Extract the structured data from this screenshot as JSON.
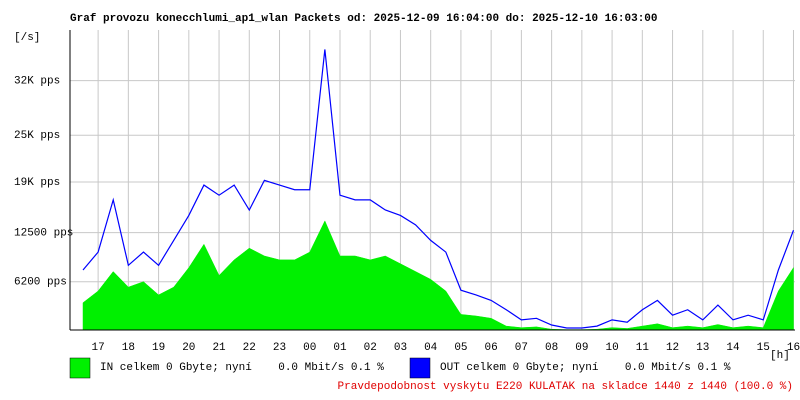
{
  "chart_data": {
    "type": "line",
    "title": "Graf provozu konecchlumi_ap1_wlan Packets od: 2025-12-09 16:04:00 do: 2025-12-10 16:03:00",
    "y_label": "[/s]",
    "x_label": "[h]",
    "footer": "Pravdepodobnost vyskytu E220 KULATAK na skladce 1440 z 1440 (100.0 %)",
    "grid": true,
    "xlim": [
      16.07,
      40.05
    ],
    "xticks": [
      {
        "value": 17,
        "label": "17"
      },
      {
        "value": 18,
        "label": "18"
      },
      {
        "value": 19,
        "label": "19"
      },
      {
        "value": 20,
        "label": "20"
      },
      {
        "value": 21,
        "label": "21"
      },
      {
        "value": 22,
        "label": "22"
      },
      {
        "value": 23,
        "label": "23"
      },
      {
        "value": 24,
        "label": "00"
      },
      {
        "value": 25,
        "label": "01"
      },
      {
        "value": 26,
        "label": "02"
      },
      {
        "value": 27,
        "label": "03"
      },
      {
        "value": 28,
        "label": "04"
      },
      {
        "value": 29,
        "label": "05"
      },
      {
        "value": 30,
        "label": "06"
      },
      {
        "value": 31,
        "label": "07"
      },
      {
        "value": 32,
        "label": "08"
      },
      {
        "value": 33,
        "label": "09"
      },
      {
        "value": 34,
        "label": "10"
      },
      {
        "value": 35,
        "label": "11"
      },
      {
        "value": 36,
        "label": "12"
      },
      {
        "value": 37,
        "label": "13"
      },
      {
        "value": 38,
        "label": "14"
      },
      {
        "value": 39,
        "label": "15"
      },
      {
        "value": 40,
        "label": "16"
      }
    ],
    "ylim": [
      0,
      38500
    ],
    "yticks": [
      {
        "value": 6200,
        "label": "6200 pps"
      },
      {
        "value": 12500,
        "label": "12500 pps"
      },
      {
        "value": 19000,
        "label": "19K pps"
      },
      {
        "value": 25000,
        "label": "25K pps"
      },
      {
        "value": 32000,
        "label": "32K pps"
      }
    ],
    "x": [
      16.5,
      17,
      17.5,
      18,
      18.5,
      19,
      19.5,
      20,
      20.5,
      21,
      21.5,
      22,
      22.5,
      23,
      23.5,
      24,
      24.5,
      25,
      25.5,
      26,
      26.5,
      27,
      27.5,
      28,
      28.5,
      29,
      29.5,
      30,
      30.5,
      31,
      31.5,
      32,
      32.5,
      33,
      33.5,
      34,
      34.5,
      35,
      35.5,
      36,
      36.5,
      37,
      37.5,
      38,
      38.5,
      39,
      39.5,
      40
    ],
    "series": [
      {
        "name": "IN celkem 0 Gbyte; nyní    0.0 Mbit/s 0.1 %",
        "color": "#00f000",
        "fill": true,
        "values": [
          3500,
          5000,
          7500,
          5500,
          6200,
          4500,
          5500,
          8000,
          11000,
          7000,
          9000,
          10500,
          9500,
          9000,
          9000,
          10000,
          14000,
          9500,
          9500,
          9000,
          9500,
          8500,
          7500,
          6500,
          5000,
          2000,
          1800,
          1500,
          500,
          300,
          400,
          100,
          50,
          50,
          100,
          300,
          200,
          500,
          800,
          300,
          500,
          300,
          700,
          300,
          500,
          300,
          5000,
          8000
        ]
      },
      {
        "name": "OUT celkem 0 Gbyte; nyní    0.0 Mbit/s 0.1 %",
        "color": "#0000ff",
        "fill": false,
        "values": [
          7700,
          10000,
          16700,
          8300,
          10000,
          8300,
          11500,
          14700,
          18600,
          17300,
          18600,
          15400,
          19200,
          18600,
          18000,
          18000,
          36000,
          17300,
          16700,
          16700,
          15400,
          14700,
          13500,
          11500,
          10000,
          5100,
          4500,
          3800,
          2600,
          1300,
          1500,
          640,
          260,
          260,
          500,
          1300,
          1000,
          2600,
          3800,
          1900,
          2600,
          1300,
          3200,
          1300,
          1900,
          1300,
          7700,
          12800
        ]
      }
    ]
  }
}
